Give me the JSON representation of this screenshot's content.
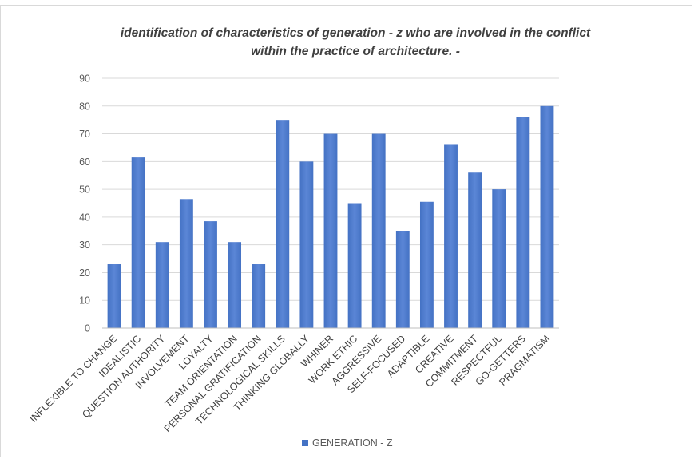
{
  "colors": {
    "bar": "#4472c4",
    "bar_light": "#5b86d6",
    "grid": "#d9d9d9"
  },
  "chart_data": {
    "type": "bar",
    "title": "identification of characteristics of generation - z who are involved in the conflict within the practice of architecture. -",
    "title_lines": [
      "identification of characteristics of generation - z who are involved in the conflict",
      "within the practice of architecture. -"
    ],
    "categories": [
      "INFLEXIBLE TO CHANGE",
      "IDEALISTIC",
      "QUESTION AUTHORITY",
      "INVOLVEMENT",
      "LOYALTY",
      "TEAM ORIENTATION",
      "PERSONAL GRATIFICATION",
      "TECHNOLOGICAL SKILLS",
      "THINKING GLOBALLY",
      "WHINER",
      "WORK ETHIC",
      "AGGRESSIVE",
      "SELF-FOCUSED",
      "ADAPTIBLE",
      "CREATIVE",
      "COMMITMENT",
      "RESPECTFUL",
      "GO-GETTERS",
      "PRAGMATISM"
    ],
    "series": [
      {
        "name": "GENERATION - Z",
        "values": [
          23,
          61.5,
          31,
          46.5,
          38.5,
          31,
          23,
          75,
          60,
          70,
          45,
          70,
          35,
          45.5,
          66,
          56,
          50,
          76,
          80
        ]
      }
    ],
    "ylim": [
      0,
      90
    ],
    "yticks": [
      0,
      10,
      20,
      30,
      40,
      50,
      60,
      70,
      80,
      90
    ],
    "grid": true,
    "legend_position": "bottom"
  }
}
